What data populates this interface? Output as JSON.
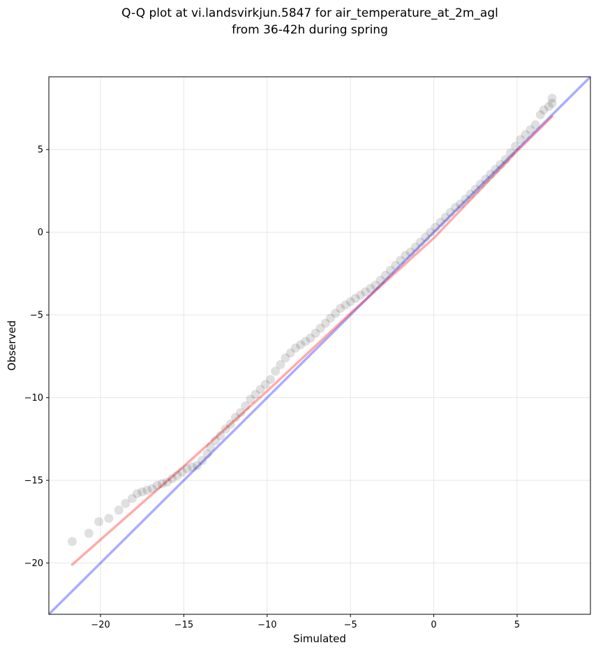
{
  "chart_data": {
    "type": "scatter",
    "title_lines": [
      "Q-Q plot at vi.landsvirkjun.5847 for air_temperature_at_2m_agl",
      "from 36-42h during spring"
    ],
    "xlabel": "Simulated",
    "ylabel": "Observed",
    "xlim": [
      -23.1,
      9.4
    ],
    "ylim": [
      -23.1,
      9.4
    ],
    "xticks": [
      -20,
      -15,
      -10,
      -5,
      0,
      5
    ],
    "yticks": [
      -20,
      -15,
      -10,
      -5,
      0,
      5
    ],
    "xtick_labels": [
      "−20",
      "−15",
      "−10",
      "−5",
      "0",
      "5"
    ],
    "ytick_labels": [
      "−20",
      "−15",
      "−10",
      "−5",
      "0",
      "5"
    ],
    "grid": true,
    "reference_line": {
      "name": "",
      "color": "#0000ff",
      "points": [
        [
          -23.1,
          -23.1
        ],
        [
          9.4,
          9.4
        ]
      ]
    },
    "fit_line": {
      "name": "",
      "color": "#ff0000",
      "points": [
        [
          -21.7,
          -20.1
        ],
        [
          -15,
          -14.15
        ],
        [
          -10,
          -9.6
        ],
        [
          -5,
          -4.9
        ],
        [
          0,
          -0.35
        ],
        [
          5,
          4.9
        ],
        [
          7.1,
          7.0
        ]
      ]
    },
    "series": [
      {
        "color": "#000000",
        "points": [
          [
            -21.7,
            -18.7
          ],
          [
            -20.7,
            -18.2
          ],
          [
            -20.1,
            -17.5
          ],
          [
            -19.5,
            -17.3
          ],
          [
            -18.9,
            -16.8
          ],
          [
            -18.5,
            -16.4
          ],
          [
            -18.1,
            -16.1
          ],
          [
            -17.8,
            -15.8
          ],
          [
            -17.5,
            -15.7
          ],
          [
            -17.2,
            -15.6
          ],
          [
            -16.9,
            -15.5
          ],
          [
            -16.6,
            -15.3
          ],
          [
            -16.3,
            -15.2
          ],
          [
            -16.0,
            -15.1
          ],
          [
            -15.7,
            -14.9
          ],
          [
            -15.4,
            -14.7
          ],
          [
            -15.1,
            -14.5
          ],
          [
            -14.8,
            -14.3
          ],
          [
            -14.5,
            -14.2
          ],
          [
            -14.2,
            -14.1
          ],
          [
            -13.9,
            -13.8
          ],
          [
            -13.6,
            -13.4
          ],
          [
            -13.4,
            -13.0
          ],
          [
            -13.1,
            -12.6
          ],
          [
            -12.8,
            -12.3
          ],
          [
            -12.5,
            -11.9
          ],
          [
            -12.2,
            -11.6
          ],
          [
            -11.9,
            -11.2
          ],
          [
            -11.6,
            -10.9
          ],
          [
            -11.3,
            -10.5
          ],
          [
            -11.0,
            -10.1
          ],
          [
            -10.7,
            -9.8
          ],
          [
            -10.4,
            -9.5
          ],
          [
            -10.1,
            -9.2
          ],
          [
            -9.8,
            -8.9
          ],
          [
            -9.5,
            -8.4
          ],
          [
            -9.2,
            -8.0
          ],
          [
            -8.9,
            -7.6
          ],
          [
            -8.6,
            -7.3
          ],
          [
            -8.3,
            -7.0
          ],
          [
            -8.0,
            -6.8
          ],
          [
            -7.7,
            -6.6
          ],
          [
            -7.4,
            -6.4
          ],
          [
            -7.1,
            -6.1
          ],
          [
            -6.8,
            -5.8
          ],
          [
            -6.5,
            -5.5
          ],
          [
            -6.2,
            -5.2
          ],
          [
            -5.9,
            -4.9
          ],
          [
            -5.6,
            -4.6
          ],
          [
            -5.3,
            -4.4
          ],
          [
            -5.0,
            -4.2
          ],
          [
            -4.7,
            -4.0
          ],
          [
            -4.4,
            -3.8
          ],
          [
            -4.1,
            -3.6
          ],
          [
            -3.8,
            -3.4
          ],
          [
            -3.5,
            -3.2
          ],
          [
            -3.2,
            -2.9
          ],
          [
            -2.9,
            -2.6
          ],
          [
            -2.6,
            -2.3
          ],
          [
            -2.3,
            -2.0
          ],
          [
            -2.0,
            -1.7
          ],
          [
            -1.7,
            -1.4
          ],
          [
            -1.4,
            -1.2
          ],
          [
            -1.1,
            -0.9
          ],
          [
            -0.8,
            -0.6
          ],
          [
            -0.5,
            -0.3
          ],
          [
            -0.2,
            0.0
          ],
          [
            0.1,
            0.3
          ],
          [
            0.4,
            0.6
          ],
          [
            0.7,
            0.9
          ],
          [
            1.0,
            1.2
          ],
          [
            1.3,
            1.5
          ],
          [
            1.6,
            1.7
          ],
          [
            1.9,
            2.0
          ],
          [
            2.2,
            2.3
          ],
          [
            2.5,
            2.6
          ],
          [
            2.8,
            2.9
          ],
          [
            3.1,
            3.2
          ],
          [
            3.4,
            3.5
          ],
          [
            3.7,
            3.8
          ],
          [
            4.0,
            4.1
          ],
          [
            4.3,
            4.4
          ],
          [
            4.6,
            4.8
          ],
          [
            4.9,
            5.2
          ],
          [
            5.2,
            5.6
          ],
          [
            5.5,
            5.9
          ],
          [
            5.8,
            6.2
          ],
          [
            6.1,
            6.5
          ],
          [
            6.4,
            7.1
          ],
          [
            6.6,
            7.4
          ],
          [
            6.9,
            7.6
          ],
          [
            7.1,
            7.8
          ],
          [
            7.1,
            8.1
          ]
        ]
      }
    ]
  }
}
